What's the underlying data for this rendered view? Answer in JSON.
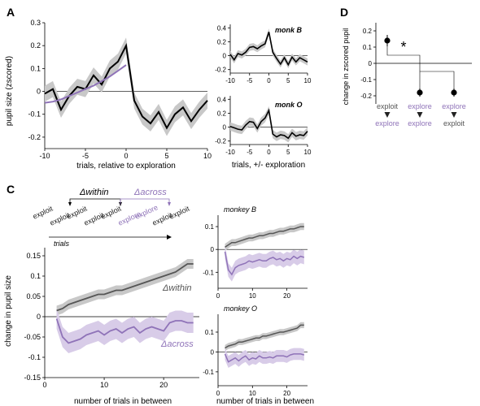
{
  "colors": {
    "black": "#000000",
    "dark_gray": "#555555",
    "shade_gray": "#c8c8c8",
    "purple": "#8f73b8",
    "purple_shade": "#d8cce8"
  },
  "panels": {
    "A": {
      "label": "A",
      "main": {
        "ylabel": "pupil size (zscored)",
        "xlabel": "trials, relative to exploration",
        "xticks": [
          "-10",
          "-5",
          "0",
          "5",
          "10"
        ],
        "yticks": [
          "-0.2",
          "-0.1",
          "0",
          "0.1",
          "0.2",
          "0.3"
        ]
      },
      "side": {
        "xlabel": "trials, +/- exploration",
        "monk_b": {
          "title": "monk B",
          "xticks": [
            "-10",
            "-5",
            "0",
            "5",
            "10"
          ],
          "yticks": [
            "-0.2",
            "0",
            "0.2",
            "0.4"
          ]
        },
        "monk_o": {
          "title": "monk O",
          "xticks": [
            "-10",
            "-5",
            "0",
            "5",
            "10"
          ],
          "yticks": [
            "-0.2",
            "0",
            "0.2",
            "0.4"
          ]
        }
      }
    },
    "C": {
      "label": "C",
      "schematic": {
        "delta_within": "Δwithin",
        "delta_across": "Δacross",
        "words": [
          {
            "text": "exploit",
            "color": "dark"
          },
          {
            "text": "exploit",
            "color": "dark"
          },
          {
            "text": "exploit",
            "color": "dark"
          },
          {
            "text": "exploit",
            "color": "dark"
          },
          {
            "text": "exploit",
            "color": "dark"
          },
          {
            "text": "explore",
            "color": "purple"
          },
          {
            "text": "explore",
            "color": "purple"
          },
          {
            "text": "exploit",
            "color": "dark"
          },
          {
            "text": "exploit",
            "color": "dark"
          }
        ],
        "trials_label": "trials"
      },
      "main": {
        "ylabel": "change in pupil size",
        "xlabel": "number of trials in between",
        "xticks": [
          "0",
          "10",
          "20"
        ],
        "yticks": [
          "-0.15",
          "-0.1",
          "-0.05",
          "0",
          "0.05",
          "0.1",
          "0.15"
        ],
        "label_within": "Δwithin",
        "label_across": "Δacross"
      },
      "side": {
        "xlabel": "number of trials in between",
        "monkey_b": {
          "title": "monkey B",
          "xticks": [
            "0",
            "10",
            "20"
          ],
          "yticks": [
            "-0.1",
            "0",
            "0.1"
          ]
        },
        "monkey_o": {
          "title": "monkey O",
          "xticks": [
            "0",
            "10",
            "20"
          ],
          "yticks": [
            "-0.1",
            "0",
            "0.1"
          ]
        }
      }
    },
    "D": {
      "label": "D",
      "ylabel": "change in zscored pupil",
      "yticks": [
        "-0.2",
        "-0.1",
        "0",
        "0.1",
        "0.2"
      ],
      "significance": "*",
      "transitions": [
        {
          "from": "exploit",
          "from_color": "dark",
          "to": "explore",
          "to_color": "purple"
        },
        {
          "from": "explore",
          "from_color": "purple",
          "to": "explore",
          "to_color": "purple"
        },
        {
          "from": "explore",
          "from_color": "purple",
          "to": "exploit",
          "to_color": "dark"
        }
      ]
    }
  },
  "chart_data": [
    {
      "type": "line",
      "panel": "A-main",
      "xlabel": "trials, relative to exploration",
      "ylabel": "pupil size (zscored)",
      "xlim": [
        -10,
        10
      ],
      "ylim": [
        -0.25,
        0.3
      ],
      "x": [
        -10,
        -9,
        -8,
        -7,
        -6,
        -5,
        -4,
        -3,
        -2,
        -1,
        0,
        1,
        2,
        3,
        4,
        5,
        6,
        7,
        8,
        9,
        10
      ],
      "series": [
        {
          "color": "black",
          "values": [
            -0.01,
            0.01,
            -0.08,
            -0.02,
            0.02,
            0.01,
            0.07,
            0.03,
            0.1,
            0.13,
            0.2,
            -0.04,
            -0.11,
            -0.14,
            -0.09,
            -0.16,
            -0.1,
            -0.07,
            -0.13,
            -0.08,
            -0.04
          ],
          "band": 0.035
        },
        {
          "color": "purple",
          "values": [
            -0.05,
            -0.045,
            -0.035,
            -0.02,
            -0.005,
            0.01,
            0.025,
            0.045,
            0.065,
            0.09,
            0.115
          ],
          "x": [
            -10,
            -9,
            -8,
            -7,
            -6,
            -5,
            -4,
            -3,
            -2,
            -1,
            0
          ]
        }
      ]
    },
    {
      "type": "line",
      "panel": "A-monkB",
      "title": "monk B",
      "xlim": [
        -10,
        10
      ],
      "ylim": [
        -0.25,
        0.45
      ],
      "x": [
        -10,
        -9,
        -8,
        -7,
        -6,
        -5,
        -4,
        -3,
        -2,
        -1,
        0,
        1,
        2,
        3,
        4,
        5,
        6,
        7,
        8,
        9,
        10
      ],
      "series": [
        {
          "color": "black",
          "values": [
            0.02,
            -0.06,
            0.03,
            0.01,
            0.05,
            0.12,
            0.13,
            0.1,
            0.14,
            0.17,
            0.34,
            0.05,
            -0.04,
            -0.12,
            -0.03,
            -0.13,
            -0.02,
            -0.09,
            -0.03,
            -0.06,
            -0.09
          ],
          "band": 0.05
        }
      ]
    },
    {
      "type": "line",
      "panel": "A-monkO",
      "title": "monk O",
      "xlim": [
        -10,
        10
      ],
      "ylim": [
        -0.25,
        0.45
      ],
      "x": [
        -10,
        -9,
        -8,
        -7,
        -6,
        -5,
        -4,
        -3,
        -2,
        -1,
        0,
        1,
        2,
        3,
        4,
        5,
        6,
        7,
        8,
        9,
        10
      ],
      "series": [
        {
          "color": "black",
          "values": [
            0.01,
            -0.01,
            -0.03,
            -0.04,
            0.03,
            0.08,
            0.07,
            -0.02,
            0.08,
            0.13,
            0.24,
            -0.1,
            -0.14,
            -0.11,
            -0.12,
            -0.16,
            -0.08,
            -0.13,
            -0.11,
            -0.12,
            -0.06
          ],
          "band": 0.06
        }
      ]
    },
    {
      "type": "line",
      "panel": "C-main",
      "xlabel": "number of trials in between",
      "ylabel": "change in pupil size",
      "xlim": [
        0,
        26
      ],
      "ylim": [
        -0.15,
        0.17
      ],
      "x": [
        2,
        3,
        4,
        5,
        6,
        7,
        8,
        9,
        10,
        11,
        12,
        13,
        14,
        15,
        16,
        17,
        18,
        19,
        20,
        21,
        22,
        23,
        24,
        25
      ],
      "series": [
        {
          "color": "dark_gray",
          "label": "Δwithin",
          "values": [
            0.015,
            0.02,
            0.03,
            0.035,
            0.04,
            0.045,
            0.05,
            0.055,
            0.055,
            0.06,
            0.065,
            0.065,
            0.07,
            0.075,
            0.08,
            0.085,
            0.09,
            0.095,
            0.1,
            0.105,
            0.11,
            0.12,
            0.13,
            0.13
          ],
          "band": 0.012
        },
        {
          "color": "purple",
          "label": "Δacross",
          "values": [
            -0.005,
            -0.05,
            -0.065,
            -0.06,
            -0.055,
            -0.045,
            -0.04,
            -0.035,
            -0.045,
            -0.035,
            -0.03,
            -0.04,
            -0.03,
            -0.025,
            -0.04,
            -0.03,
            -0.025,
            -0.03,
            -0.035,
            -0.015,
            -0.01,
            -0.01,
            -0.015,
            -0.015
          ],
          "band": 0.025
        }
      ]
    },
    {
      "type": "line",
      "panel": "C-monkB",
      "title": "monkey B",
      "xlim": [
        0,
        26
      ],
      "ylim": [
        -0.17,
        0.15
      ],
      "x": [
        2,
        3,
        4,
        5,
        6,
        7,
        8,
        9,
        10,
        11,
        12,
        13,
        14,
        15,
        16,
        17,
        18,
        19,
        20,
        21,
        22,
        23,
        24,
        25
      ],
      "series": [
        {
          "color": "dark_gray",
          "values": [
            0.01,
            0.02,
            0.03,
            0.03,
            0.035,
            0.04,
            0.045,
            0.05,
            0.05,
            0.055,
            0.06,
            0.06,
            0.065,
            0.07,
            0.07,
            0.075,
            0.08,
            0.08,
            0.085,
            0.09,
            0.09,
            0.095,
            0.1,
            0.1
          ],
          "band": 0.015
        },
        {
          "color": "purple",
          "values": [
            -0.01,
            -0.09,
            -0.11,
            -0.08,
            -0.07,
            -0.065,
            -0.06,
            -0.05,
            -0.055,
            -0.05,
            -0.045,
            -0.05,
            -0.05,
            -0.04,
            -0.035,
            -0.045,
            -0.04,
            -0.05,
            -0.04,
            -0.045,
            -0.03,
            -0.04,
            -0.03,
            -0.035
          ],
          "band": 0.03
        }
      ]
    },
    {
      "type": "line",
      "panel": "C-monkO",
      "title": "monkey O",
      "xlim": [
        0,
        26
      ],
      "ylim": [
        -0.17,
        0.19
      ],
      "x": [
        2,
        3,
        4,
        5,
        6,
        7,
        8,
        9,
        10,
        11,
        12,
        13,
        14,
        15,
        16,
        17,
        18,
        19,
        20,
        21,
        22,
        23,
        24,
        25
      ],
      "series": [
        {
          "color": "dark_gray",
          "values": [
            0.02,
            0.03,
            0.035,
            0.04,
            0.05,
            0.05,
            0.055,
            0.06,
            0.065,
            0.07,
            0.07,
            0.08,
            0.08,
            0.085,
            0.09,
            0.095,
            0.1,
            0.1,
            0.105,
            0.11,
            0.115,
            0.12,
            0.135,
            0.135
          ],
          "band": 0.015
        },
        {
          "color": "purple",
          "values": [
            -0.01,
            -0.05,
            -0.04,
            -0.03,
            -0.045,
            -0.03,
            -0.02,
            -0.04,
            -0.03,
            -0.035,
            -0.02,
            -0.03,
            -0.03,
            -0.025,
            -0.03,
            -0.02,
            -0.02,
            -0.02,
            -0.025,
            -0.015,
            -0.01,
            -0.01,
            -0.01,
            -0.015
          ],
          "band": 0.03
        }
      ]
    },
    {
      "type": "scatter",
      "panel": "D",
      "ylabel": "change in zscored pupil",
      "ylim": [
        -0.25,
        0.25
      ],
      "categories": [
        "exploit→explore",
        "explore→explore",
        "explore→exploit"
      ],
      "values": [
        0.14,
        -0.18,
        -0.18
      ],
      "errors": [
        0.035,
        0.025,
        0.025
      ]
    }
  ]
}
